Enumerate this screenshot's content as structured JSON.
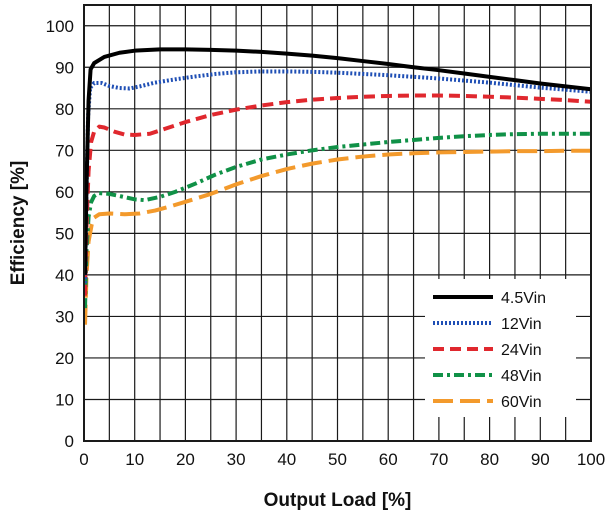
{
  "chart_data": {
    "type": "line",
    "title": "",
    "xlabel": "Output Load [%]",
    "ylabel": "Efficiency [%]",
    "xlim": [
      0,
      100
    ],
    "ylim": [
      0,
      105
    ],
    "xticks": [
      0,
      10,
      20,
      30,
      40,
      50,
      60,
      70,
      80,
      90,
      100
    ],
    "yticks": [
      0,
      10,
      20,
      30,
      40,
      50,
      60,
      70,
      80,
      90,
      100
    ],
    "grid": true,
    "legend_position": "bottom-right",
    "series": [
      {
        "name": "4.5Vin",
        "color": "#000000",
        "dash": "solid",
        "points": [
          [
            0.2,
            40
          ],
          [
            0.5,
            62
          ],
          [
            0.9,
            82
          ],
          [
            1.3,
            89.5
          ],
          [
            2,
            91
          ],
          [
            4,
            92.5
          ],
          [
            7,
            93.5
          ],
          [
            10,
            94
          ],
          [
            15,
            94.3
          ],
          [
            20,
            94.3
          ],
          [
            25,
            94.2
          ],
          [
            30,
            94
          ],
          [
            35,
            93.7
          ],
          [
            40,
            93.3
          ],
          [
            45,
            92.8
          ],
          [
            50,
            92.2
          ],
          [
            55,
            91.5
          ],
          [
            60,
            90.8
          ],
          [
            65,
            90
          ],
          [
            70,
            89.3
          ],
          [
            75,
            88.5
          ],
          [
            80,
            87.7
          ],
          [
            85,
            86.9
          ],
          [
            90,
            86.1
          ],
          [
            95,
            85.4
          ],
          [
            100,
            84.7
          ]
        ]
      },
      {
        "name": "12Vin",
        "color": "#1f4fb5",
        "dash": "dotted",
        "points": [
          [
            0.2,
            38
          ],
          [
            0.5,
            60
          ],
          [
            0.8,
            78
          ],
          [
            1.2,
            85
          ],
          [
            2,
            86.2
          ],
          [
            3.5,
            86.2
          ],
          [
            5,
            85.5
          ],
          [
            7,
            85
          ],
          [
            9,
            84.9
          ],
          [
            11,
            85.4
          ],
          [
            14,
            86.3
          ],
          [
            18,
            87.1
          ],
          [
            22,
            87.8
          ],
          [
            26,
            88.4
          ],
          [
            30,
            88.8
          ],
          [
            35,
            89
          ],
          [
            40,
            89
          ],
          [
            45,
            88.9
          ],
          [
            50,
            88.7
          ],
          [
            55,
            88.4
          ],
          [
            60,
            88.1
          ],
          [
            65,
            87.7
          ],
          [
            70,
            87.3
          ],
          [
            75,
            86.8
          ],
          [
            80,
            86.3
          ],
          [
            85,
            85.7
          ],
          [
            90,
            85.1
          ],
          [
            95,
            84.6
          ],
          [
            100,
            84.1
          ]
        ]
      },
      {
        "name": "24Vin",
        "color": "#e0282e",
        "dash": "dashed",
        "points": [
          [
            0.2,
            35
          ],
          [
            0.5,
            52
          ],
          [
            0.9,
            65
          ],
          [
            1.4,
            72
          ],
          [
            2,
            74.5
          ],
          [
            3,
            75.7
          ],
          [
            4,
            75.5
          ],
          [
            6,
            74.5
          ],
          [
            8,
            73.8
          ],
          [
            10,
            73.7
          ],
          [
            13,
            74
          ],
          [
            16,
            75.2
          ],
          [
            20,
            76.8
          ],
          [
            25,
            78.5
          ],
          [
            30,
            79.8
          ],
          [
            35,
            80.8
          ],
          [
            40,
            81.6
          ],
          [
            45,
            82.2
          ],
          [
            50,
            82.6
          ],
          [
            55,
            82.9
          ],
          [
            60,
            83.1
          ],
          [
            65,
            83.2
          ],
          [
            70,
            83.2
          ],
          [
            75,
            83.1
          ],
          [
            80,
            82.9
          ],
          [
            85,
            82.7
          ],
          [
            90,
            82.4
          ],
          [
            95,
            82.1
          ],
          [
            100,
            81.7
          ]
        ]
      },
      {
        "name": "48Vin",
        "color": "#109147",
        "dash": "dashdot",
        "points": [
          [
            0.2,
            32
          ],
          [
            0.5,
            46
          ],
          [
            0.9,
            54
          ],
          [
            1.4,
            57.5
          ],
          [
            2,
            59
          ],
          [
            3,
            59.7
          ],
          [
            5,
            59.5
          ],
          [
            7,
            59
          ],
          [
            10,
            58.2
          ],
          [
            12,
            58
          ],
          [
            15,
            58.8
          ],
          [
            18,
            60
          ],
          [
            22,
            62
          ],
          [
            26,
            64.2
          ],
          [
            30,
            66
          ],
          [
            35,
            67.8
          ],
          [
            40,
            69
          ],
          [
            45,
            70
          ],
          [
            50,
            70.8
          ],
          [
            55,
            71.4
          ],
          [
            60,
            72
          ],
          [
            65,
            72.5
          ],
          [
            70,
            73
          ],
          [
            75,
            73.4
          ],
          [
            80,
            73.7
          ],
          [
            85,
            73.9
          ],
          [
            90,
            74
          ],
          [
            95,
            74
          ],
          [
            100,
            74
          ]
        ]
      },
      {
        "name": "60Vin",
        "color": "#f39a2c",
        "dash": "longdash",
        "points": [
          [
            0.2,
            28
          ],
          [
            0.5,
            40
          ],
          [
            0.9,
            48
          ],
          [
            1.5,
            52
          ],
          [
            2,
            53.8
          ],
          [
            3,
            54.6
          ],
          [
            5,
            54.8
          ],
          [
            8,
            54.6
          ],
          [
            11,
            54.8
          ],
          [
            14,
            55.5
          ],
          [
            17,
            56.5
          ],
          [
            20,
            57.6
          ],
          [
            25,
            59.5
          ],
          [
            30,
            61.8
          ],
          [
            35,
            63.8
          ],
          [
            40,
            65.5
          ],
          [
            45,
            66.8
          ],
          [
            50,
            67.8
          ],
          [
            55,
            68.5
          ],
          [
            60,
            69
          ],
          [
            65,
            69.3
          ],
          [
            70,
            69.5
          ],
          [
            75,
            69.6
          ],
          [
            80,
            69.7
          ],
          [
            85,
            69.8
          ],
          [
            90,
            69.8
          ],
          [
            95,
            69.9
          ],
          [
            100,
            69.9
          ]
        ]
      }
    ]
  }
}
